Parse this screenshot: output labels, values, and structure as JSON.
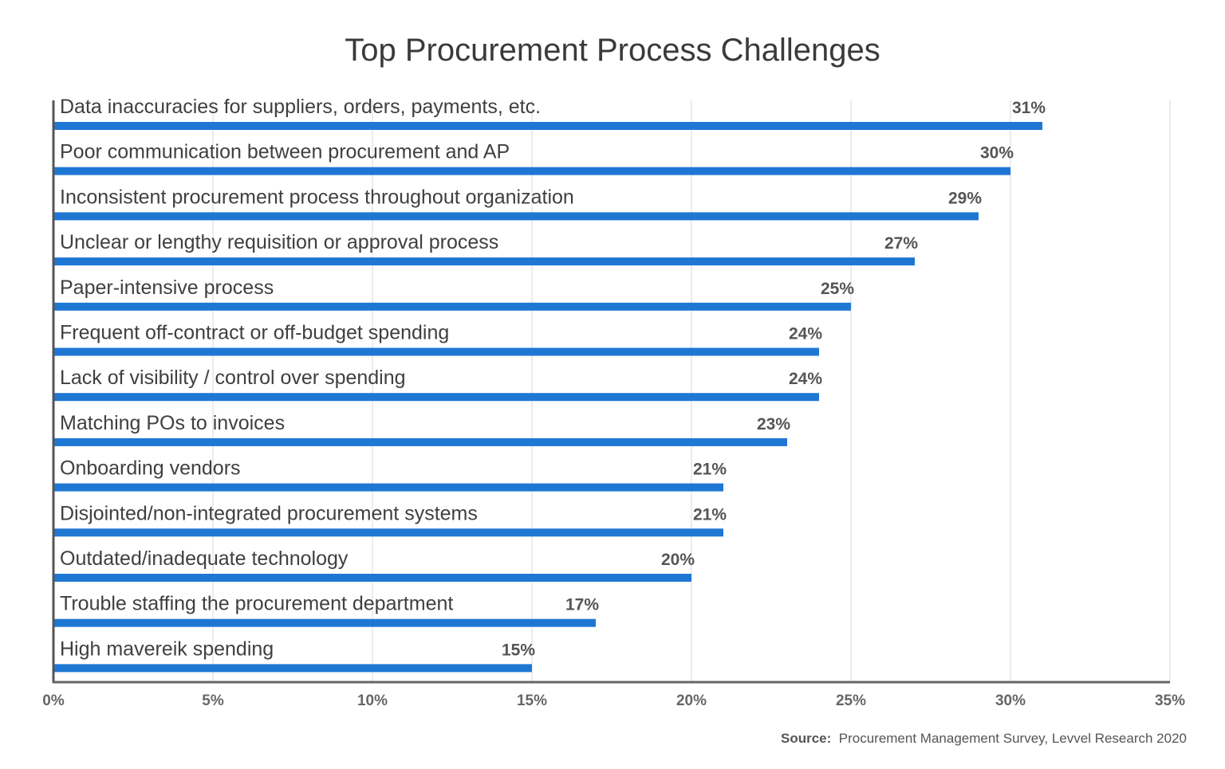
{
  "chart_data": {
    "type": "bar",
    "orientation": "horizontal",
    "title": "Top Procurement Process Challenges",
    "categories": [
      "Data inaccuracies for suppliers, orders, payments, etc.",
      "Poor communication between procurement and AP",
      "Inconsistent procurement process throughout organization",
      "Unclear or lengthy requisition or approval process",
      "Paper-intensive process",
      "Frequent off-contract or off-budget spending",
      "Lack of visibility / control over spending",
      "Matching POs to invoices",
      "Onboarding vendors",
      "Disjointed/non-integrated procurement systems",
      "Outdated/inadequate technology",
      "Trouble staffing the procurement department",
      "High mavereik spending"
    ],
    "values": [
      31,
      30,
      29,
      27,
      25,
      24,
      24,
      23,
      21,
      21,
      20,
      17,
      15
    ],
    "value_labels": [
      "31%",
      "30%",
      "29%",
      "27%",
      "25%",
      "24%",
      "24%",
      "23%",
      "21%",
      "21%",
      "20%",
      "17%",
      "15%"
    ],
    "xlim": [
      0,
      35
    ],
    "x_ticks": [
      0,
      5,
      10,
      15,
      20,
      25,
      30,
      35
    ],
    "x_tick_labels": [
      "0%",
      "5%",
      "10%",
      "15%",
      "20%",
      "25%",
      "30%",
      "35%"
    ],
    "grid": "vertical",
    "bar_color": "#1f77d4"
  },
  "source": {
    "prefix": "Source:",
    "text": "Procurement Management Survey, Levvel Research 2020"
  }
}
